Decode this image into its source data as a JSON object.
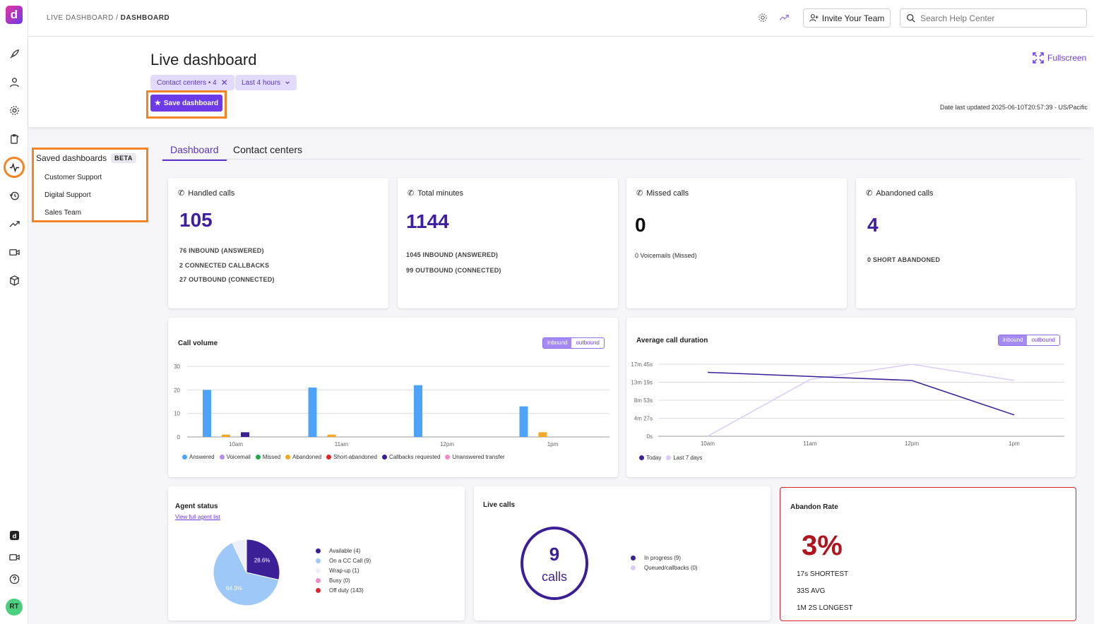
{
  "nav": {
    "logo_text": "d",
    "avatar": "RT"
  },
  "topbar": {
    "breadcrumb_root": "LIVE DASHBOARD",
    "breadcrumb_sep": "/",
    "breadcrumb_current": "DASHBOARD",
    "invite_label": "Invite Your Team",
    "search_placeholder": "Search Help Center"
  },
  "header": {
    "title": "Live dashboard",
    "filter_contact_centers": "Contact centers • 4",
    "filter_time": "Last 4 hours",
    "save_label": "Save dashboard",
    "fullscreen_label": "Fullscreen",
    "updated": "Date last updated 2025-06-10T20:57:39 - US/Pacific"
  },
  "saved": {
    "title": "Saved dashboards",
    "badge": "BETA",
    "items": [
      "Customer Support",
      "Digital Support",
      "Sales Team"
    ]
  },
  "tabs": [
    "Dashboard",
    "Contact centers"
  ],
  "stats": {
    "handled": {
      "title": "Handled calls",
      "value": "105",
      "lines": [
        "76 INBOUND (ANSWERED)",
        "2 CONNECTED CALLBACKS",
        "27 OUTBOUND (CONNECTED)"
      ]
    },
    "minutes": {
      "title": "Total minutes",
      "value": "1144",
      "lines": [
        "1045 INBOUND (ANSWERED)",
        "99 OUTBOUND (CONNECTED)"
      ]
    },
    "missed": {
      "title": "Missed calls",
      "value": "0",
      "lines": [
        "0 Voicemails (Missed)"
      ]
    },
    "abandoned": {
      "title": "Abandoned calls",
      "value": "4",
      "lines": [
        "0 SHORT ABANDONED"
      ]
    }
  },
  "call_volume": {
    "title": "Call volume",
    "toggle": [
      "inbound",
      "outbound"
    ],
    "legend": [
      {
        "label": "Answered",
        "color": "#4da3f7"
      },
      {
        "label": "Voicemail",
        "color": "#b48cf2"
      },
      {
        "label": "Missed",
        "color": "#22a845"
      },
      {
        "label": "Abandoned",
        "color": "#f5a623"
      },
      {
        "label": "Short-abandoned",
        "color": "#e3242b"
      },
      {
        "label": "Callbacks requested",
        "color": "#3a1f96"
      },
      {
        "label": "Unanswered transfer",
        "color": "#f28ac9"
      }
    ]
  },
  "avg_duration": {
    "title": "Average call duration",
    "toggle": [
      "inbound",
      "outbound"
    ],
    "legend": [
      {
        "label": "Today",
        "color": "#3a1f96"
      },
      {
        "label": "Last 7 days",
        "color": "#d9cdf7"
      }
    ]
  },
  "agent_status": {
    "title": "Agent status",
    "link": "View full agent list",
    "legend": [
      {
        "label": "Available (4)",
        "color": "#3a1f96"
      },
      {
        "label": "On a CC Call (9)",
        "color": "#9ec8f7"
      },
      {
        "label": "Wrap-up (1)",
        "color": "#eeeefa"
      },
      {
        "label": "Busy (0)",
        "color": "#f28ac9"
      },
      {
        "label": "Off duty (143)",
        "color": "#e3242b"
      }
    ]
  },
  "live_calls": {
    "title": "Live calls",
    "count": "9",
    "unit": "calls",
    "legend": [
      {
        "label": "In progress (9)",
        "color": "#3a1f96"
      },
      {
        "label": "Queued/callbacks (0)",
        "color": "#d9cdf7"
      }
    ]
  },
  "abandon_rate": {
    "title": "Abandon Rate",
    "value": "3%",
    "shortest": "17s SHORTEST",
    "avg": "33S AVG",
    "longest": "1M 2S LONGEST"
  },
  "chart_data": [
    {
      "type": "bar",
      "title": "Call volume",
      "categories": [
        "10am",
        "11am",
        "12pm",
        "1pm"
      ],
      "ylim": [
        0,
        30
      ],
      "yticks": [
        "0",
        "10",
        "20",
        "30"
      ],
      "series": [
        {
          "name": "Answered",
          "color": "#4da3f7",
          "values": [
            20,
            21,
            22,
            13
          ]
        },
        {
          "name": "Abandoned",
          "color": "#f5a623",
          "values": [
            1,
            1,
            0,
            2
          ]
        },
        {
          "name": "Callbacks requested",
          "color": "#3a1f96",
          "values": [
            2,
            0,
            0,
            0
          ]
        }
      ]
    },
    {
      "type": "line",
      "title": "Average call duration",
      "categories": [
        "10am",
        "11am",
        "12pm",
        "1pm"
      ],
      "yticks": [
        "0s",
        "4m 27s",
        "8m 53s",
        "13m 19s",
        "17m 45s"
      ],
      "ylim": [
        0,
        1065
      ],
      "series": [
        {
          "name": "Today",
          "color": "#3a1f96",
          "values": [
            945,
            885,
            825,
            315
          ],
          "start": 0
        },
        {
          "name": "Last 7 days",
          "color": "#d9cdf7",
          "values": [
            0,
            840,
            1065,
            825
          ],
          "start": 0
        }
      ]
    },
    {
      "type": "pie",
      "title": "Agent status",
      "slices": [
        {
          "name": "Available",
          "value": 28.6,
          "color": "#3a1f96",
          "label": "28.6%"
        },
        {
          "name": "On a CC Call",
          "value": 64.3,
          "color": "#9ec8f7",
          "label": "64.3%"
        },
        {
          "name": "Wrap-up",
          "value": 7.1,
          "color": "#eeeefa",
          "label": ""
        }
      ]
    }
  ]
}
